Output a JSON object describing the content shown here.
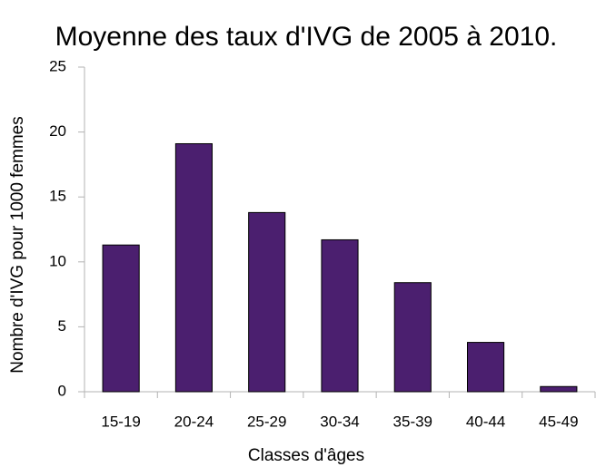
{
  "chart_data": {
    "type": "bar",
    "title": "Moyenne des taux d'IVG de 2005 à 2010.",
    "x_label": "Classes d'âges",
    "y_label": "Nombre d'IVG pour 1000 femmes",
    "categories": [
      "15-19",
      "20-24",
      "25-29",
      "30-34",
      "35-39",
      "40-44",
      "45-49"
    ],
    "values": [
      11.3,
      19.1,
      13.8,
      11.7,
      8.4,
      3.8,
      0.4
    ],
    "color": "#4b1f6f",
    "ylim": [
      0,
      25
    ],
    "yticks": [
      0,
      5,
      10,
      15,
      20,
      25
    ],
    "grid": false
  }
}
